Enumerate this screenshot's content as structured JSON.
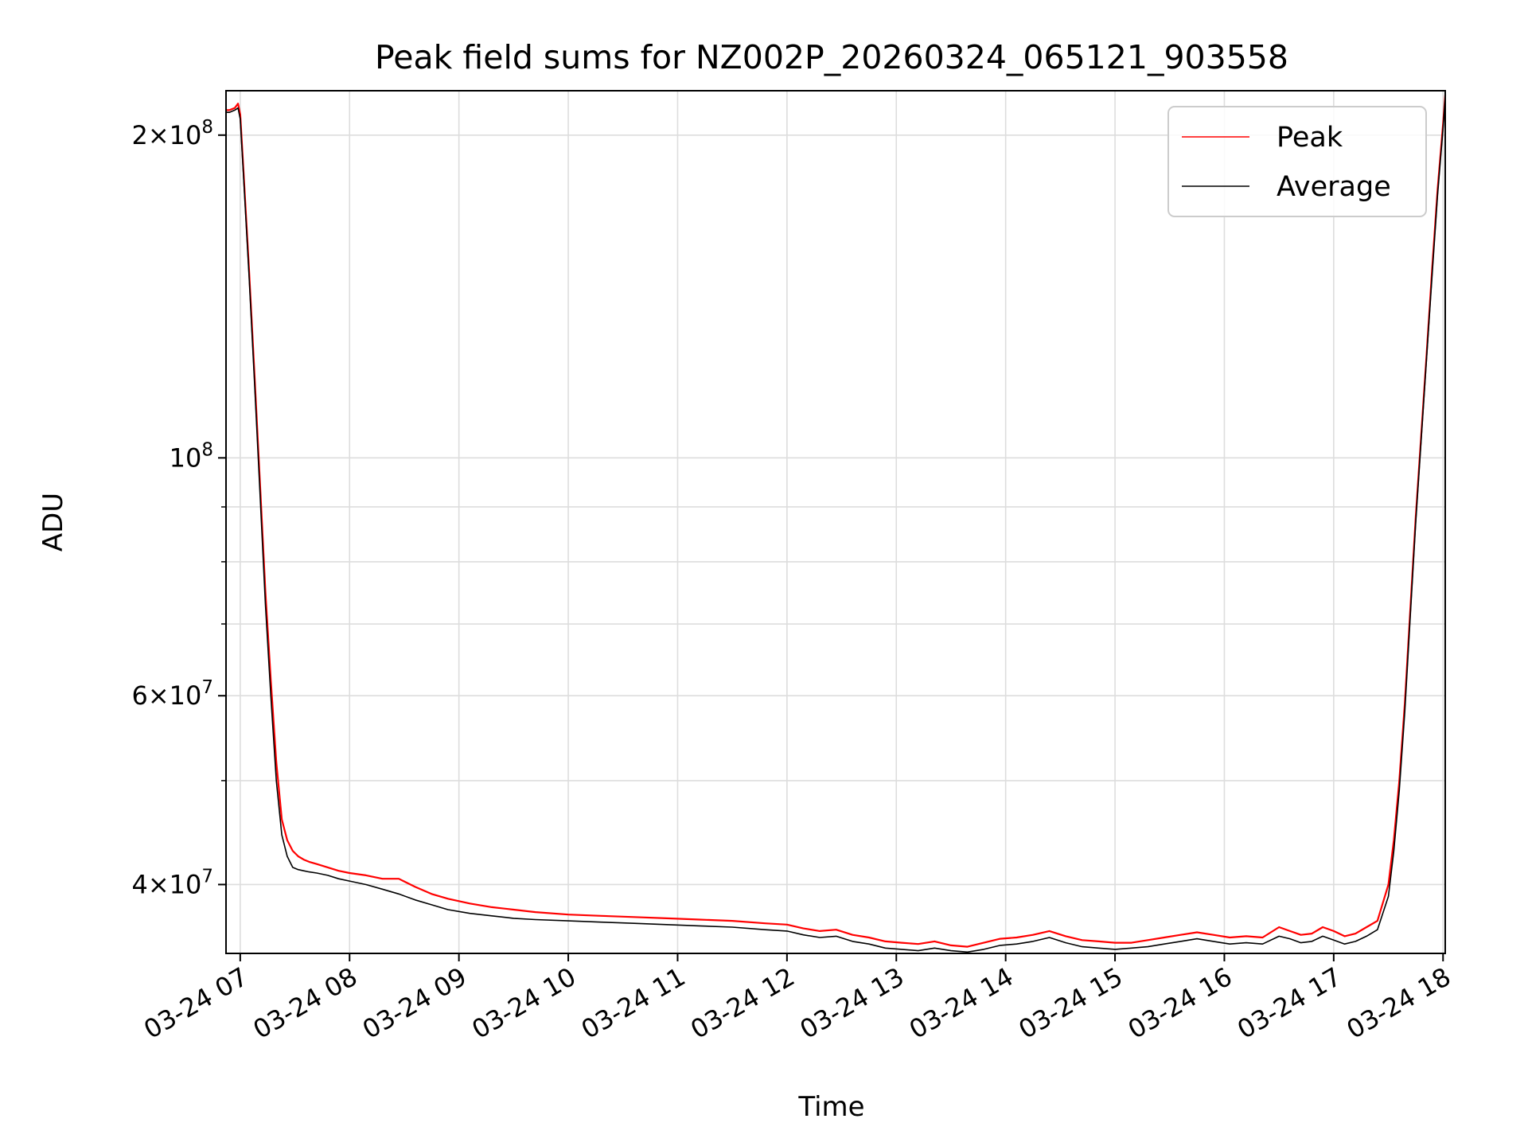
{
  "chart_data": {
    "type": "line",
    "title": "Peak field sums for NZ002P_20260324_065121_903558",
    "xlabel": "Time",
    "ylabel": "ADU",
    "yscale": "log",
    "ylim": [
      34500000,
      220000000
    ],
    "xlim": [
      6.87,
      18.02
    ],
    "grid": true,
    "legend_position": "top-right",
    "x_ticks": [
      {
        "value": 7,
        "label": "03-24 07"
      },
      {
        "value": 8,
        "label": "03-24 08"
      },
      {
        "value": 9,
        "label": "03-24 09"
      },
      {
        "value": 10,
        "label": "03-24 10"
      },
      {
        "value": 11,
        "label": "03-24 11"
      },
      {
        "value": 12,
        "label": "03-24 12"
      },
      {
        "value": 13,
        "label": "03-24 13"
      },
      {
        "value": 14,
        "label": "03-24 14"
      },
      {
        "value": 15,
        "label": "03-24 15"
      },
      {
        "value": 16,
        "label": "03-24 16"
      },
      {
        "value": 17,
        "label": "03-24 17"
      },
      {
        "value": 18,
        "label": "03-24 18"
      }
    ],
    "y_major_ticks": [
      {
        "value": 40000000,
        "mantissa": "4",
        "exp": "7"
      },
      {
        "value": 60000000,
        "mantissa": "6",
        "exp": "7"
      },
      {
        "value": 100000000,
        "mantissa": "",
        "exp": "8"
      },
      {
        "value": 200000000,
        "mantissa": "2",
        "exp": "8"
      }
    ],
    "y_minor_ticks": [
      50000000,
      70000000,
      80000000,
      90000000
    ],
    "series": [
      {
        "name": "Peak",
        "color": "#ff0000",
        "x": [
          6.87,
          6.9,
          6.95,
          6.98,
          7.0,
          7.03,
          7.08,
          7.13,
          7.18,
          7.23,
          7.28,
          7.33,
          7.38,
          7.43,
          7.48,
          7.53,
          7.58,
          7.63,
          7.7,
          7.8,
          7.9,
          8.0,
          8.15,
          8.3,
          8.45,
          8.6,
          8.75,
          8.9,
          9.1,
          9.3,
          9.5,
          9.7,
          10.0,
          10.3,
          10.6,
          10.9,
          11.2,
          11.5,
          11.8,
          12.0,
          12.15,
          12.3,
          12.45,
          12.6,
          12.75,
          12.9,
          13.05,
          13.2,
          13.35,
          13.5,
          13.65,
          13.8,
          13.95,
          14.1,
          14.25,
          14.4,
          14.55,
          14.7,
          14.85,
          15.0,
          15.15,
          15.3,
          15.45,
          15.6,
          15.75,
          15.9,
          16.05,
          16.2,
          16.35,
          16.5,
          16.6,
          16.7,
          16.8,
          16.9,
          17.0,
          17.1,
          17.2,
          17.3,
          17.4,
          17.5,
          17.55,
          17.6,
          17.65,
          17.7,
          17.75,
          17.8,
          17.85,
          17.9,
          17.95,
          18.0,
          18.02
        ],
        "y": [
          211000000,
          211000000,
          212000000,
          214000000,
          209000000,
          185000000,
          150000000,
          120000000,
          95000000,
          75000000,
          62000000,
          52000000,
          46000000,
          44000000,
          43000000,
          42500000,
          42200000,
          42000000,
          41800000,
          41500000,
          41200000,
          41000000,
          40800000,
          40500000,
          40500000,
          39800000,
          39200000,
          38800000,
          38400000,
          38100000,
          37900000,
          37700000,
          37500000,
          37400000,
          37300000,
          37200000,
          37100000,
          37000000,
          36800000,
          36700000,
          36400000,
          36200000,
          36300000,
          35900000,
          35700000,
          35400000,
          35300000,
          35200000,
          35400000,
          35100000,
          35000000,
          35300000,
          35600000,
          35700000,
          35900000,
          36200000,
          35800000,
          35500000,
          35400000,
          35300000,
          35300000,
          35500000,
          35700000,
          35900000,
          36100000,
          35900000,
          35700000,
          35800000,
          35700000,
          36500000,
          36200000,
          35900000,
          36000000,
          36500000,
          36200000,
          35800000,
          36000000,
          36500000,
          37000000,
          40000000,
          44000000,
          50000000,
          59000000,
          72000000,
          88000000,
          105000000,
          125000000,
          150000000,
          178000000,
          205000000,
          218000000
        ]
      },
      {
        "name": "Average",
        "color": "#000000",
        "x": [
          6.87,
          6.9,
          6.95,
          6.98,
          7.0,
          7.03,
          7.08,
          7.13,
          7.18,
          7.23,
          7.28,
          7.33,
          7.38,
          7.43,
          7.48,
          7.53,
          7.58,
          7.63,
          7.7,
          7.8,
          7.9,
          8.0,
          8.15,
          8.3,
          8.45,
          8.6,
          8.75,
          8.9,
          9.1,
          9.3,
          9.5,
          9.7,
          10.0,
          10.3,
          10.6,
          10.9,
          11.2,
          11.5,
          11.8,
          12.0,
          12.15,
          12.3,
          12.45,
          12.6,
          12.75,
          12.9,
          13.05,
          13.2,
          13.35,
          13.5,
          13.65,
          13.8,
          13.95,
          14.1,
          14.25,
          14.4,
          14.55,
          14.7,
          14.85,
          15.0,
          15.15,
          15.3,
          15.45,
          15.6,
          15.75,
          15.9,
          16.05,
          16.2,
          16.35,
          16.5,
          16.6,
          16.7,
          16.8,
          16.9,
          17.0,
          17.1,
          17.2,
          17.3,
          17.4,
          17.5,
          17.55,
          17.6,
          17.65,
          17.7,
          17.75,
          17.8,
          17.85,
          17.9,
          17.95,
          18.0,
          18.02
        ],
        "y": [
          210000000,
          210000000,
          211000000,
          212000000,
          207000000,
          183000000,
          148000000,
          118000000,
          93000000,
          73000000,
          60000000,
          50000000,
          44500000,
          42500000,
          41500000,
          41300000,
          41200000,
          41100000,
          41000000,
          40800000,
          40500000,
          40300000,
          40000000,
          39600000,
          39200000,
          38700000,
          38300000,
          37900000,
          37600000,
          37400000,
          37200000,
          37100000,
          37000000,
          36900000,
          36800000,
          36700000,
          36600000,
          36500000,
          36300000,
          36200000,
          35900000,
          35700000,
          35800000,
          35400000,
          35200000,
          34900000,
          34800000,
          34700000,
          34900000,
          34700000,
          34600000,
          34800000,
          35100000,
          35200000,
          35400000,
          35700000,
          35300000,
          35000000,
          34900000,
          34800000,
          34900000,
          35000000,
          35200000,
          35400000,
          35600000,
          35400000,
          35200000,
          35300000,
          35200000,
          35800000,
          35600000,
          35300000,
          35400000,
          35800000,
          35500000,
          35200000,
          35400000,
          35800000,
          36300000,
          39000000,
          43000000,
          49000000,
          58000000,
          71000000,
          87000000,
          104000000,
          124000000,
          148000000,
          176000000,
          203000000,
          217000000
        ]
      }
    ]
  }
}
